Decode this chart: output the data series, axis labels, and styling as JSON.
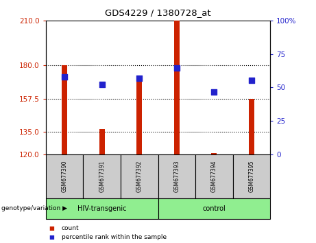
{
  "title": "GDS4229 / 1380728_at",
  "samples": [
    "GSM677390",
    "GSM677391",
    "GSM677392",
    "GSM677393",
    "GSM677394",
    "GSM677395"
  ],
  "bar_values": [
    180,
    137,
    170,
    210,
    121,
    157.5
  ],
  "bar_base": 120,
  "blue_values": [
    172,
    167,
    171,
    178,
    162,
    170
  ],
  "left_yticks": [
    120,
    135,
    157.5,
    180,
    210
  ],
  "left_ylim": [
    120,
    210
  ],
  "right_yticks": [
    0,
    25,
    50,
    75,
    100
  ],
  "right_ylim": [
    0,
    100
  ],
  "bar_color": "#cc2200",
  "blue_color": "#2222cc",
  "group1_label": "HIV-transgenic",
  "group2_label": "control",
  "group1_count": 3,
  "group2_count": 3,
  "group_bg_color": "#90ee90",
  "sample_bg_color": "#cccccc",
  "genotype_label": "genotype/variation",
  "legend_count": "count",
  "legend_percentile": "percentile rank within the sample",
  "bar_width": 0.15,
  "blue_marker_size": 30
}
